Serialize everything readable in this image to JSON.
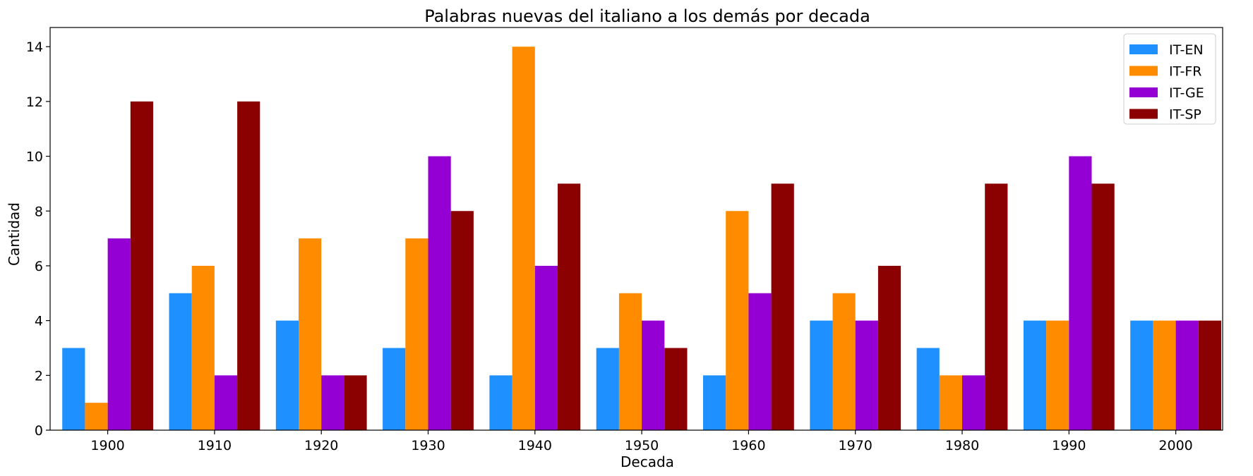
{
  "chart_data": {
    "type": "bar",
    "title": "Palabras nuevas del italiano a los demás por decada",
    "xlabel": "Decada",
    "ylabel": "Cantidad",
    "categories": [
      "1900",
      "1910",
      "1920",
      "1930",
      "1940",
      "1950",
      "1960",
      "1970",
      "1980",
      "1990",
      "2000"
    ],
    "series": [
      {
        "name": "IT-EN",
        "color": "#1e90ff",
        "values": [
          3,
          5,
          4,
          3,
          2,
          3,
          2,
          4,
          3,
          4,
          4
        ]
      },
      {
        "name": "IT-FR",
        "color": "#ff8c00",
        "values": [
          1,
          6,
          7,
          7,
          14,
          5,
          8,
          5,
          2,
          4,
          4
        ]
      },
      {
        "name": "IT-GE",
        "color": "#9400d3",
        "values": [
          7,
          2,
          2,
          10,
          6,
          4,
          5,
          4,
          2,
          10,
          4
        ]
      },
      {
        "name": "IT-SP",
        "color": "#8b0000",
        "values": [
          12,
          12,
          2,
          8,
          9,
          3,
          9,
          6,
          9,
          9,
          4
        ]
      }
    ],
    "yticks": [
      0,
      2,
      4,
      6,
      8,
      10,
      12,
      14
    ],
    "ylim": [
      0,
      14.7
    ],
    "grid": false,
    "legend_position": "top-right"
  }
}
